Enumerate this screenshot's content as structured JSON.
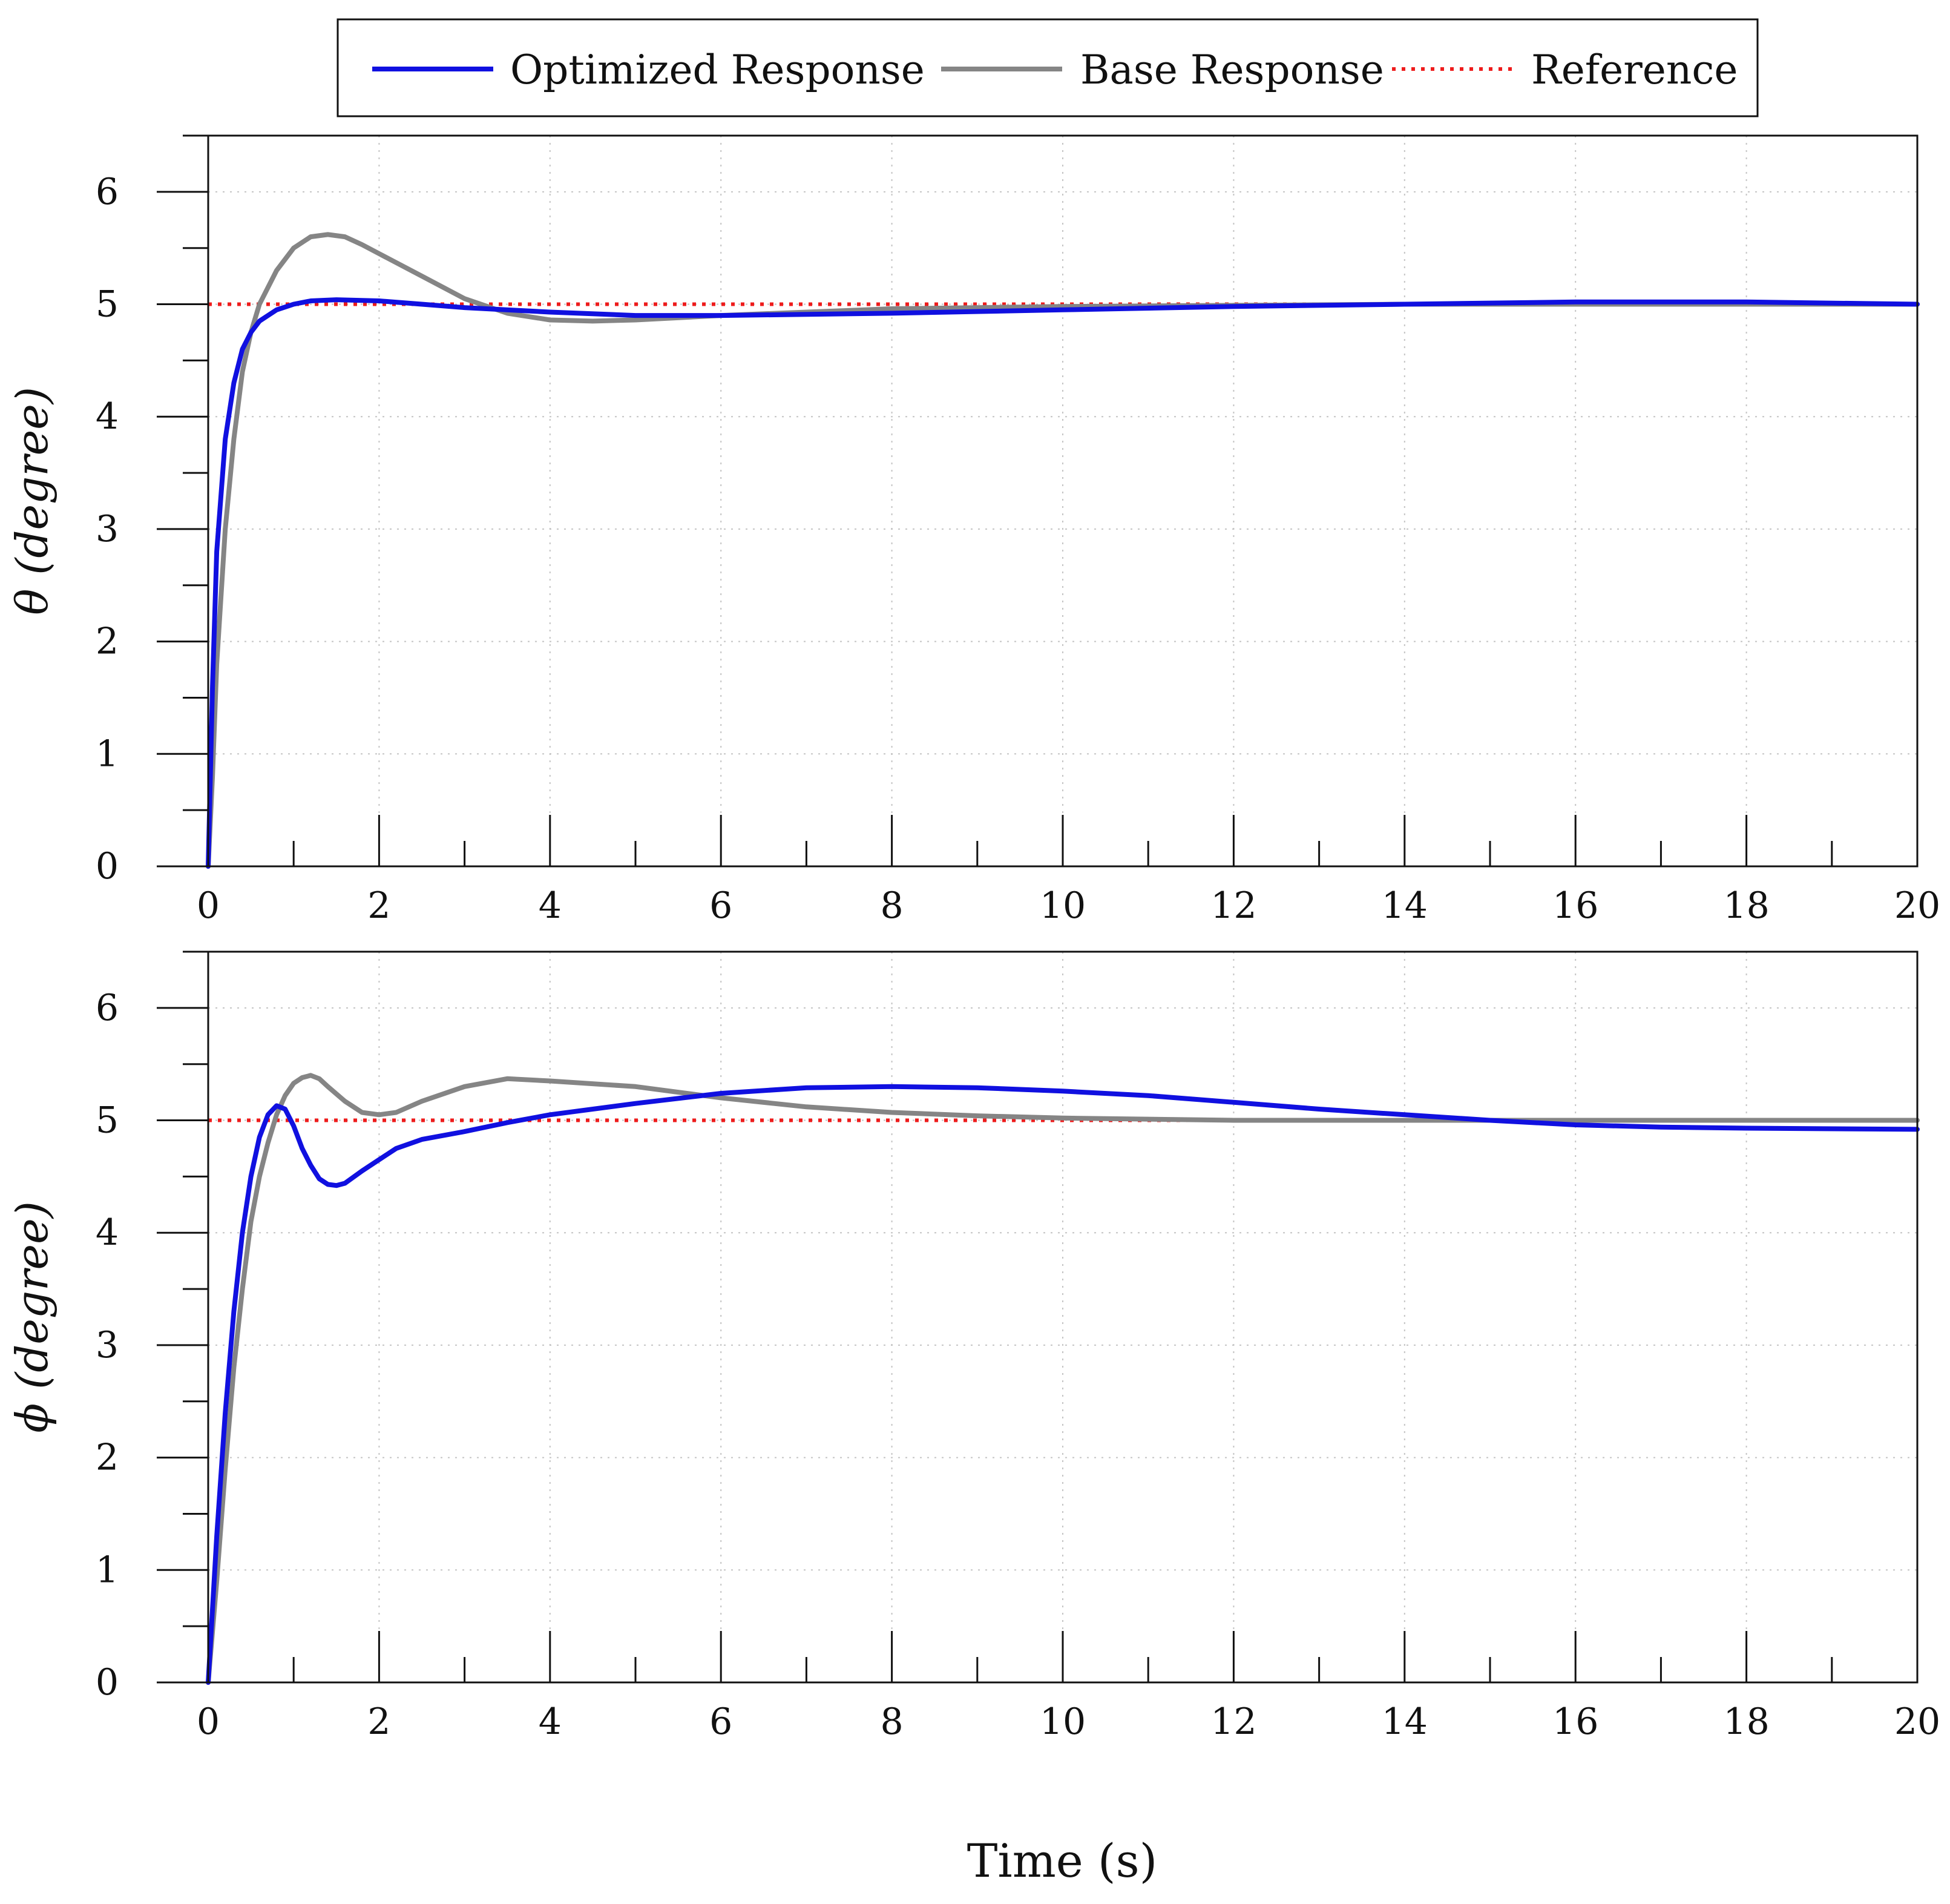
{
  "legend": {
    "items": [
      {
        "label": "Optimized Response",
        "color": "#1010e0",
        "style": "solid"
      },
      {
        "label": "Base Response",
        "color": "#858585",
        "style": "solid"
      },
      {
        "label": "Reference",
        "color": "#ee1c1c",
        "style": "dotted"
      }
    ]
  },
  "x_axis_label": "Time (s)",
  "chart_data": [
    {
      "type": "line",
      "name": "theta-plot",
      "ylabel": "θ (degree)",
      "xlim": [
        0,
        20
      ],
      "ylim": [
        0,
        6.5
      ],
      "x_ticks": [
        0,
        2,
        4,
        6,
        8,
        10,
        12,
        14,
        16,
        18,
        20
      ],
      "y_ticks": [
        0,
        1,
        2,
        3,
        4,
        5,
        6
      ],
      "grid": true,
      "series": [
        {
          "name": "Optimized Response",
          "x": [
            0,
            0.05,
            0.1,
            0.2,
            0.3,
            0.4,
            0.5,
            0.6,
            0.8,
            1.0,
            1.2,
            1.5,
            2.0,
            2.5,
            3.0,
            4.0,
            5.0,
            6.0,
            8.0,
            10.0,
            12.0,
            14.0,
            16.0,
            18.0,
            20.0
          ],
          "y": [
            0,
            1.6,
            2.8,
            3.8,
            4.3,
            4.6,
            4.75,
            4.85,
            4.95,
            5.0,
            5.03,
            5.04,
            5.03,
            5.0,
            4.97,
            4.93,
            4.9,
            4.9,
            4.92,
            4.95,
            4.98,
            5.0,
            5.02,
            5.02,
            5.0
          ]
        },
        {
          "name": "Base Response",
          "x": [
            0,
            0.05,
            0.1,
            0.2,
            0.3,
            0.4,
            0.5,
            0.6,
            0.8,
            1.0,
            1.2,
            1.4,
            1.6,
            1.8,
            2.0,
            2.5,
            3.0,
            3.5,
            4.0,
            4.5,
            5.0,
            6.0,
            7.0,
            8.0,
            10.0,
            12.0,
            14.0,
            16.0,
            18.0,
            20.0
          ],
          "y": [
            0,
            0.8,
            1.8,
            3.0,
            3.8,
            4.4,
            4.75,
            5.0,
            5.3,
            5.5,
            5.6,
            5.62,
            5.6,
            5.53,
            5.45,
            5.25,
            5.05,
            4.92,
            4.86,
            4.85,
            4.86,
            4.9,
            4.93,
            4.96,
            4.98,
            4.99,
            5.0,
            5.0,
            5.0,
            5.0
          ]
        },
        {
          "name": "Reference",
          "x": [
            0,
            20
          ],
          "y": [
            5,
            5
          ]
        }
      ]
    },
    {
      "type": "line",
      "name": "phi-plot",
      "ylabel": "ϕ (degree)",
      "xlim": [
        0,
        20
      ],
      "ylim": [
        0,
        6.5
      ],
      "x_ticks": [
        0,
        2,
        4,
        6,
        8,
        10,
        12,
        14,
        16,
        18,
        20
      ],
      "y_ticks": [
        0,
        1,
        2,
        3,
        4,
        5,
        6
      ],
      "grid": true,
      "series": [
        {
          "name": "Optimized Response",
          "x": [
            0,
            0.1,
            0.2,
            0.3,
            0.4,
            0.5,
            0.6,
            0.7,
            0.8,
            0.9,
            1.0,
            1.1,
            1.2,
            1.3,
            1.4,
            1.5,
            1.6,
            1.8,
            2.0,
            2.2,
            2.5,
            3.0,
            3.5,
            4.0,
            5.0,
            6.0,
            7.0,
            8.0,
            9.0,
            10.0,
            11.0,
            12.0,
            13.0,
            14.0,
            15.0,
            16.0,
            17.0,
            18.0,
            20.0
          ],
          "y": [
            0,
            1.3,
            2.4,
            3.3,
            4.0,
            4.5,
            4.85,
            5.05,
            5.13,
            5.1,
            4.95,
            4.75,
            4.6,
            4.48,
            4.43,
            4.42,
            4.44,
            4.55,
            4.65,
            4.75,
            4.83,
            4.9,
            4.98,
            5.05,
            5.15,
            5.24,
            5.29,
            5.3,
            5.29,
            5.26,
            5.22,
            5.16,
            5.1,
            5.05,
            5.0,
            4.96,
            4.94,
            4.93,
            4.92
          ]
        },
        {
          "name": "Base Response",
          "x": [
            0,
            0.1,
            0.2,
            0.3,
            0.4,
            0.5,
            0.6,
            0.7,
            0.8,
            0.9,
            1.0,
            1.1,
            1.2,
            1.3,
            1.4,
            1.6,
            1.8,
            2.0,
            2.2,
            2.5,
            3.0,
            3.5,
            4.0,
            5.0,
            6.0,
            7.0,
            8.0,
            9.0,
            10.0,
            12.0,
            14.0,
            16.0,
            18.0,
            20.0
          ],
          "y": [
            0,
            0.9,
            1.9,
            2.8,
            3.5,
            4.1,
            4.5,
            4.8,
            5.05,
            5.22,
            5.33,
            5.38,
            5.4,
            5.37,
            5.3,
            5.17,
            5.07,
            5.05,
            5.07,
            5.17,
            5.3,
            5.37,
            5.35,
            5.3,
            5.2,
            5.12,
            5.07,
            5.04,
            5.02,
            5.0,
            5.0,
            5.0,
            5.0,
            5.0
          ]
        },
        {
          "name": "Reference",
          "x": [
            0,
            20
          ],
          "y": [
            5,
            5
          ]
        }
      ]
    }
  ]
}
